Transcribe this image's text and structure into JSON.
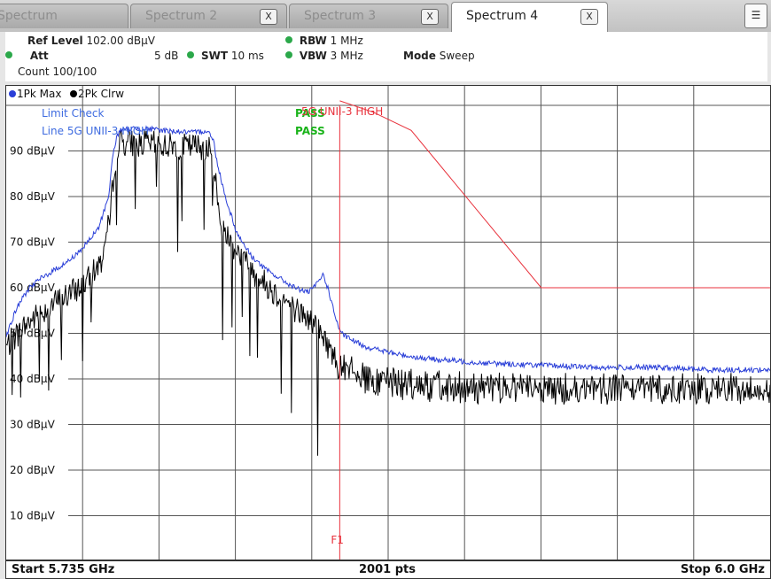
{
  "tabs": [
    {
      "label": "Spectrum",
      "active": false,
      "closable": false
    },
    {
      "label": "Spectrum 2",
      "active": false,
      "closable": true
    },
    {
      "label": "Spectrum 3",
      "active": false,
      "closable": true
    },
    {
      "label": "Spectrum 4",
      "active": true,
      "closable": true
    }
  ],
  "close_glyph": "X",
  "settings": {
    "ref_level_label": "Ref Level",
    "ref_level_value": "102.00 dBµV",
    "att_label": "Att",
    "att_value": "5 dB",
    "swt_label": "SWT",
    "swt_value": "10 ms",
    "rbw_label": "RBW",
    "rbw_value": "1 MHz",
    "vbw_label": "VBW",
    "vbw_value": "3 MHz",
    "mode_label": "Mode",
    "mode_value": "Sweep",
    "count": "Count 100/100"
  },
  "colors": {
    "trace1": "#2a3fd8",
    "trace2": "#000000",
    "limit": "#e8323c",
    "pass": "#19b319",
    "grid": "#555555",
    "limit_text_blue": "#3e6be0"
  },
  "chart_data": {
    "type": "line",
    "xlabel_start": "Start 5.735 GHz",
    "xlabel_center": "2001 pts",
    "xlabel_stop": "Stop 6.0 GHz",
    "xlim": [
      5.735,
      6.0
    ],
    "ylim": [
      0,
      100
    ],
    "yunit": "dBµV",
    "ytick_labels": [
      "90 dBµV",
      "80 dBµV",
      "70 dBµV",
      "60 dBµV",
      "50 dBµV",
      "40 dBµV",
      "30 dBµV",
      "20 dBµV",
      "10 dBµV"
    ],
    "ytick_values": [
      90,
      80,
      70,
      60,
      50,
      40,
      30,
      20,
      10
    ],
    "legend": [
      {
        "label": "1Pk Max",
        "color": "#2a3fd8"
      },
      {
        "label": "2Pk Clrw",
        "color": "#000000"
      }
    ],
    "limit_check": {
      "title": "Limit Check",
      "line_label": "Line 5G UNII-3 HIGH",
      "result": "PASS",
      "line_result": "PASS",
      "limit_line_name": "5G UNII-3 HIGH"
    },
    "marker": {
      "label": "F1",
      "x": 5.8507
    },
    "limit_line": {
      "x": [
        5.8507,
        5.8623,
        5.8755,
        5.9206,
        6.0
      ],
      "y": [
        101,
        98.5,
        94.5,
        60,
        60
      ]
    },
    "series": [
      {
        "name": "1Pk Max",
        "x": [
          5.735,
          5.739,
          5.743,
          5.747,
          5.752,
          5.757,
          5.762,
          5.767,
          5.7705,
          5.772,
          5.7735,
          5.7745,
          5.78,
          5.79,
          5.8,
          5.805,
          5.807,
          5.808,
          5.811,
          5.815,
          5.82,
          5.825,
          5.83,
          5.835,
          5.84,
          5.843,
          5.845,
          5.847,
          5.849,
          5.851,
          5.855,
          5.86,
          5.87,
          5.88,
          5.9,
          5.92,
          5.94,
          5.96,
          5.98,
          6.0
        ],
        "y": [
          49.5,
          56,
          60,
          62,
          64,
          66,
          69,
          73,
          80,
          89,
          93.5,
          94.5,
          95,
          94.5,
          94,
          94.5,
          92,
          88,
          80,
          72,
          67,
          64,
          62,
          60,
          59,
          61,
          63,
          59,
          54,
          50,
          48.5,
          47,
          45.5,
          44.5,
          43.5,
          43,
          42.5,
          42.5,
          42,
          42
        ]
      },
      {
        "name": "2Pk Clrw",
        "x": [
          5.735,
          5.742,
          5.75,
          5.758,
          5.764,
          5.768,
          5.771,
          5.7725,
          5.774,
          5.785,
          5.795,
          5.805,
          5.8072,
          5.809,
          5.813,
          5.82,
          5.828,
          5.836,
          5.842,
          5.846,
          5.85,
          5.856,
          5.86,
          5.87,
          5.88,
          5.9,
          5.92,
          5.94,
          5.96,
          5.98,
          6.0
        ],
        "y": [
          47,
          52,
          56,
          59,
          62,
          66,
          75,
          87,
          92,
          91.5,
          91,
          91,
          86,
          75,
          70,
          64,
          59,
          55,
          52,
          48,
          43.5,
          41,
          40,
          39,
          38.5,
          38,
          37.8,
          37.8,
          37.8,
          37.8,
          37.8
        ]
      }
    ]
  }
}
